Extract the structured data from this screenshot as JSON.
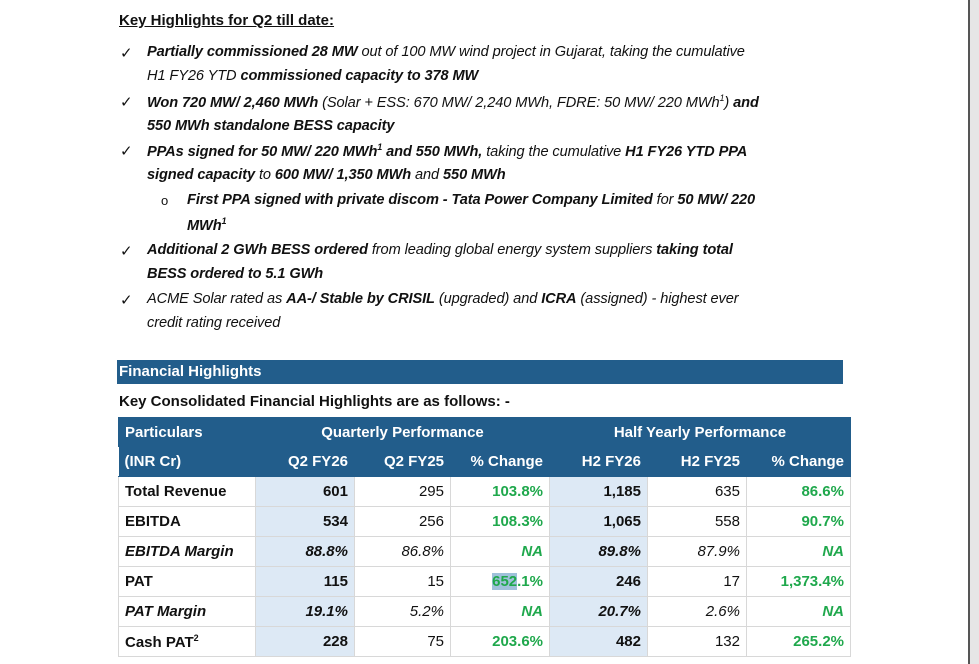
{
  "heading": "Key Highlights for Q2 till date:",
  "bullets": [
    {
      "level": 1,
      "lines": [
        [
          {
            "t": "Partially commissioned 28 MW",
            "b": 1
          },
          {
            "t": " out of 100 MW wind project in Gujarat, taking the cumulative"
          }
        ],
        [
          {
            "t": "H1 FY26 YTD"
          },
          {
            "t": " commissioned capacity to 378 MW",
            "b": 1
          }
        ]
      ]
    },
    {
      "level": 1,
      "lines": [
        [
          {
            "t": "Won 720 MW/ 2,460 MWh",
            "b": 1
          },
          {
            "t": " (Solar + ESS: 670 MW/ 2,240 MWh, FDRE: 50 MW/ 220 MWh"
          },
          {
            "t": "1",
            "sup": 1
          },
          {
            "t": ")"
          },
          {
            "t": " and",
            "b": 1
          }
        ],
        [
          {
            "t": "550 MWh standalone BESS capacity",
            "b": 1
          }
        ]
      ]
    },
    {
      "level": 1,
      "lines": [
        [
          {
            "t": "PPAs signed for 50 MW/ 220 MWh",
            "b": 1
          },
          {
            "t": "1",
            "sup": 1,
            "b": 1
          },
          {
            "t": " and 550 MWh,",
            "b": 1
          },
          {
            "t": " taking the cumulative "
          },
          {
            "t": "H1 FY26 YTD PPA",
            "b": 1
          }
        ],
        [
          {
            "t": "signed capacity",
            "b": 1
          },
          {
            "t": " to "
          },
          {
            "t": "600 MW/ 1,350 MWh",
            "b": 1
          },
          {
            "t": " and "
          },
          {
            "t": "550 MWh",
            "b": 1
          }
        ]
      ]
    },
    {
      "level": 2,
      "lines": [
        [
          {
            "t": "First PPA signed with private discom - Tata Power Company Limited",
            "b": 1
          },
          {
            "t": " for "
          },
          {
            "t": "50 MW/ 220",
            "b": 1
          }
        ],
        [
          {
            "t": "MWh",
            "b": 1
          },
          {
            "t": "1",
            "sup": 1,
            "b": 1
          }
        ]
      ]
    },
    {
      "level": 1,
      "lines": [
        [
          {
            "t": "Additional 2 GWh BESS ordered",
            "b": 1
          },
          {
            "t": " from leading global energy system suppliers "
          },
          {
            "t": "taking total",
            "b": 1
          }
        ],
        [
          {
            "t": "BESS ordered to 5.1 GWh",
            "b": 1
          }
        ]
      ]
    },
    {
      "level": 1,
      "lines": [
        [
          {
            "t": "ACME Solar rated as "
          },
          {
            "t": "AA-/ Stable by CRISIL",
            "b": 1
          },
          {
            "t": " (upgraded) and "
          },
          {
            "t": "ICRA",
            "b": 1
          },
          {
            "t": " (assigned) - highest ever"
          }
        ],
        [
          {
            "t": "credit rating received"
          }
        ]
      ]
    }
  ],
  "section_band": "Financial Highlights",
  "subheading": "Key Consolidated Financial Highlights are as follows: -",
  "table": {
    "col1": [
      "Particulars",
      "(INR Cr)"
    ],
    "group_quarterly": "Quarterly Performance",
    "group_half": "Half Yearly Performance",
    "cols": [
      "Q2 FY26",
      "Q2 FY25",
      "% Change",
      "H2 FY26",
      "H2 FY25",
      "% Change"
    ],
    "rows": [
      {
        "label": "Total Revenue",
        "italic": 0,
        "v": [
          "601",
          "295",
          "103.8%",
          "1,185",
          "635",
          "86.6%"
        ]
      },
      {
        "label": "EBITDA",
        "italic": 0,
        "v": [
          "534",
          "256",
          "108.3%",
          "1,065",
          "558",
          "90.7%"
        ]
      },
      {
        "label": "EBITDA Margin",
        "italic": 1,
        "v": [
          "88.8%",
          "86.8%",
          "NA",
          "89.8%",
          "87.9%",
          "NA"
        ]
      },
      {
        "label": "PAT",
        "italic": 0,
        "v": [
          "115",
          "15",
          "652.1%",
          "246",
          "17",
          "1,373.4%"
        ]
      },
      {
        "label": "PAT Margin",
        "italic": 1,
        "v": [
          "19.1%",
          "5.2%",
          "NA",
          "20.7%",
          "2.6%",
          "NA"
        ]
      },
      {
        "label": "Cash PAT",
        "sup": "2",
        "italic": 0,
        "v": [
          "228",
          "75",
          "203.6%",
          "482",
          "132",
          "265.2%"
        ]
      }
    ],
    "selected_text": "652"
  },
  "colors": {
    "header_blue": "#225d8b",
    "highlight_col": "#dde9f5",
    "positive_green": "#1fa84c",
    "selection": "#9fc1da"
  }
}
